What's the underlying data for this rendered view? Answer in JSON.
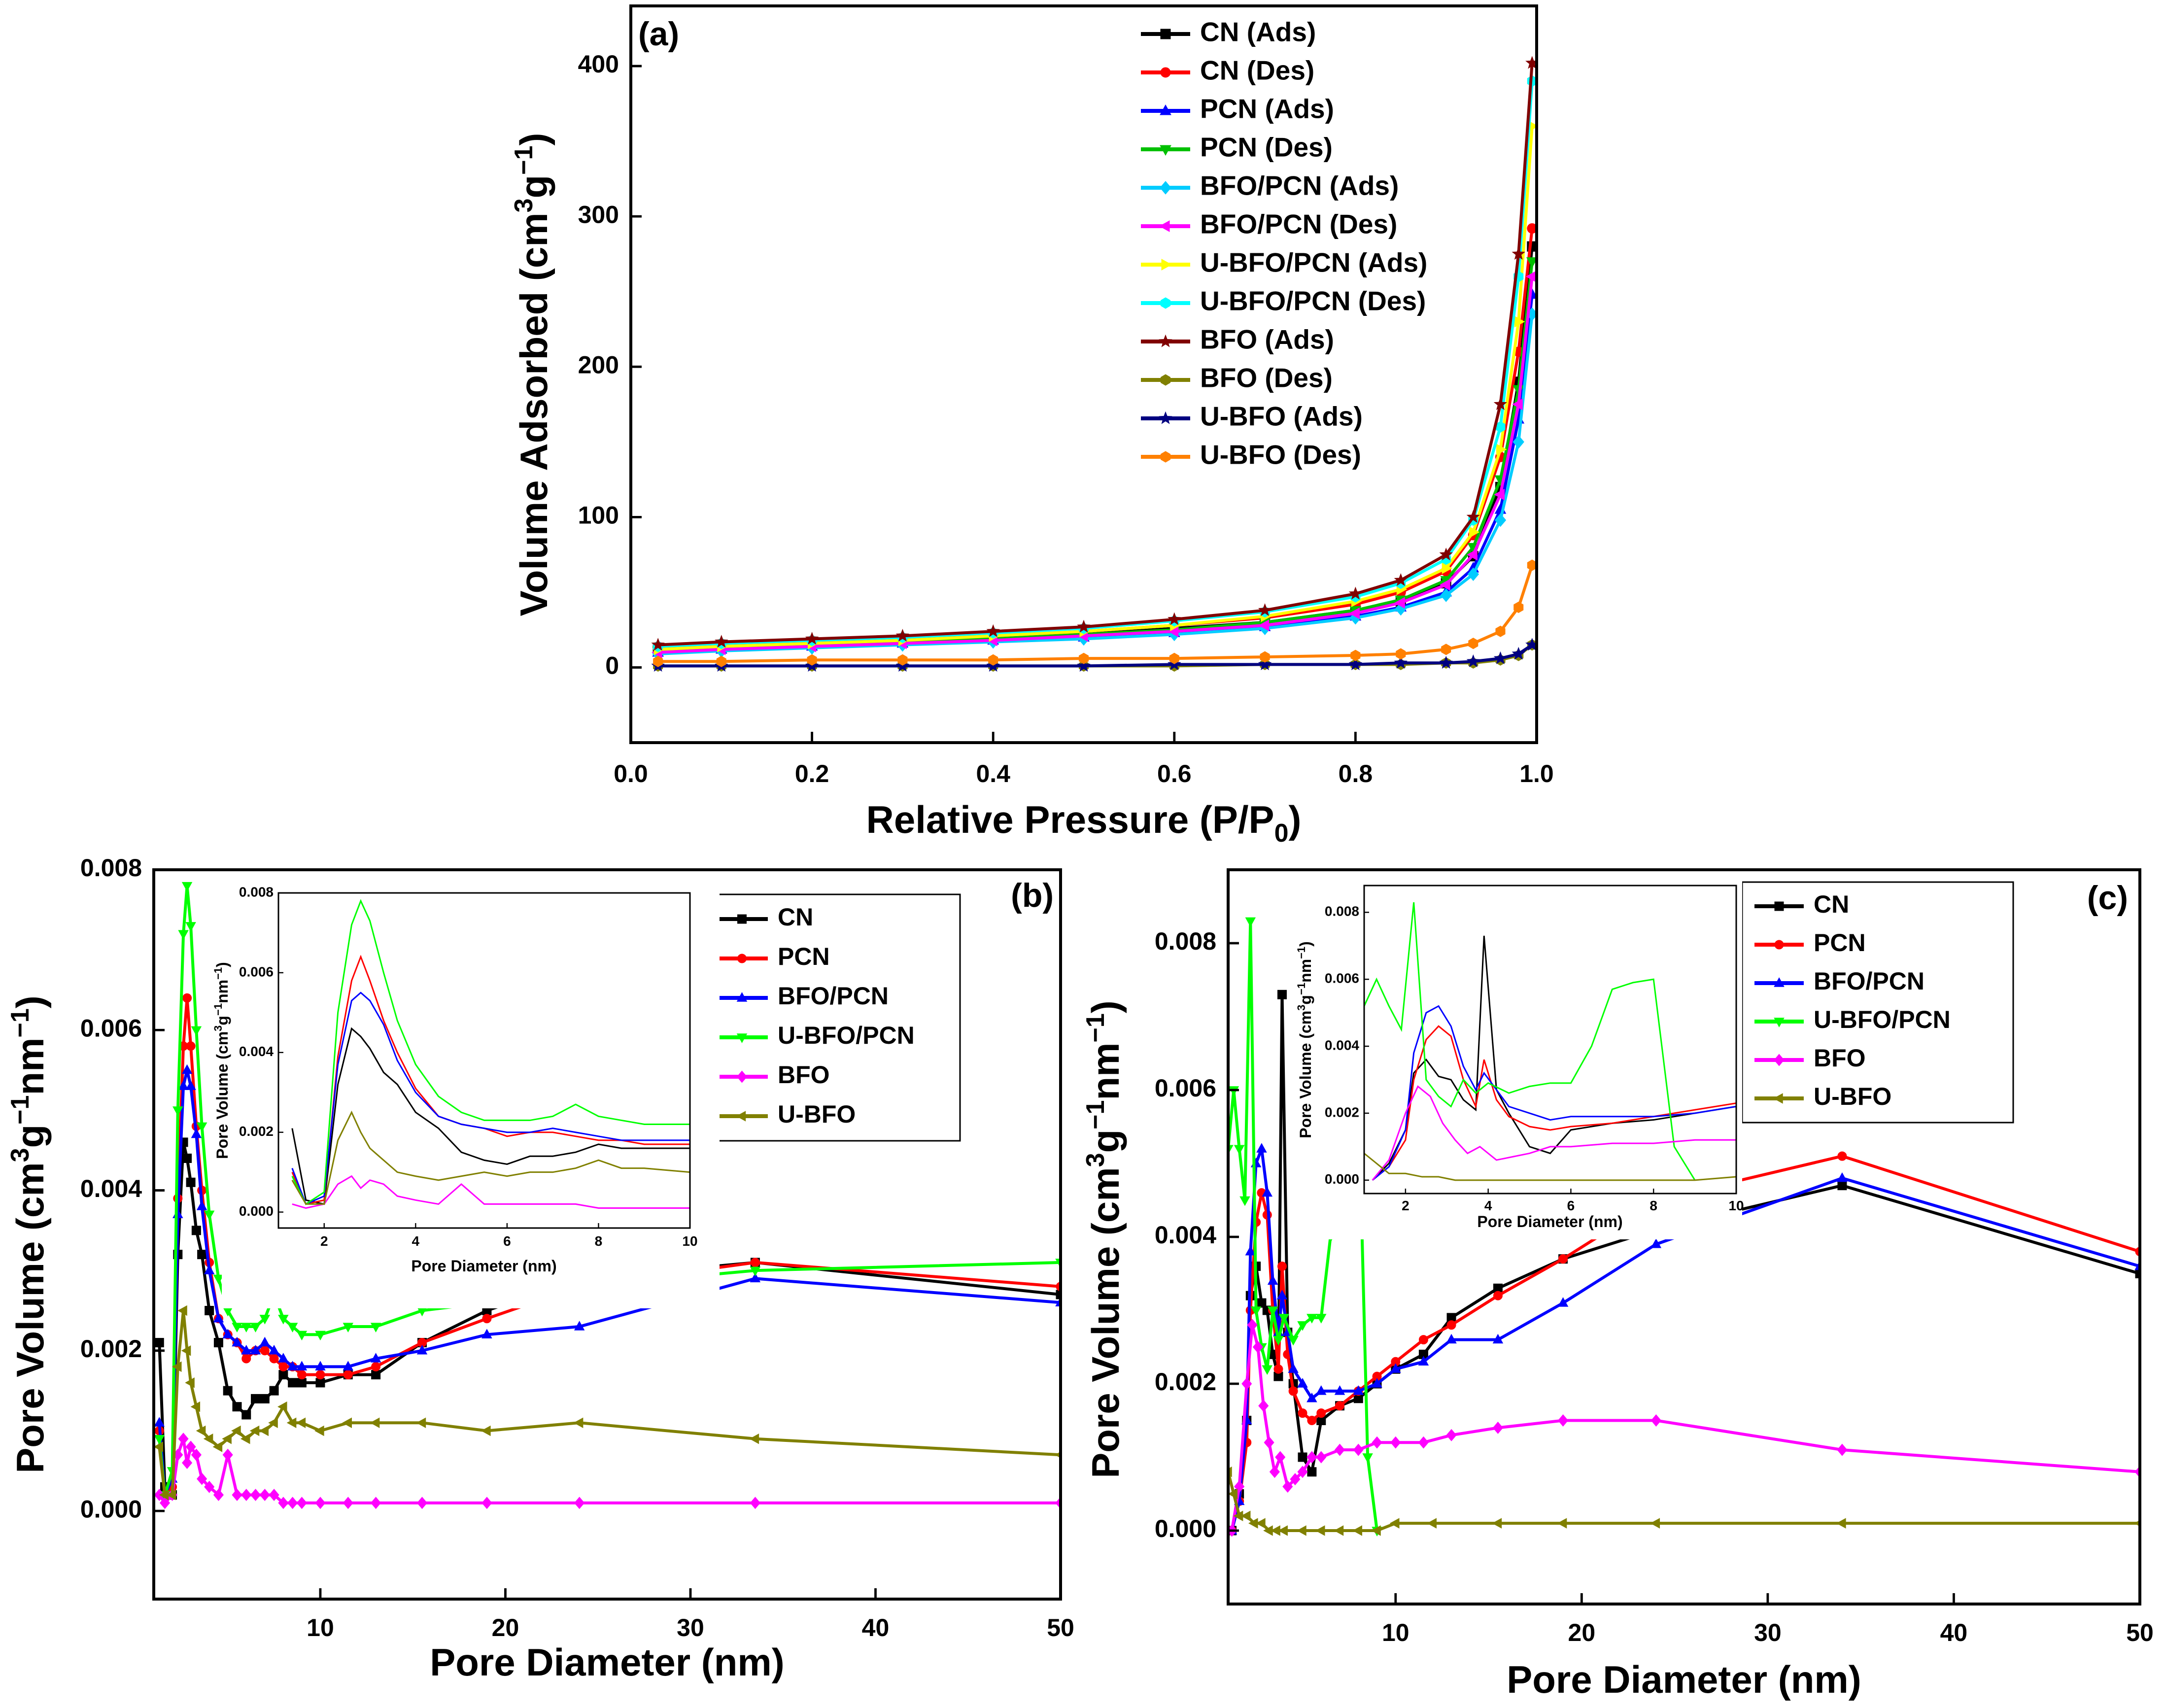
{
  "chart_data": [
    {
      "type": "line",
      "panel_label": "(a)",
      "xlabel": "Relative Pressure (P/P0)",
      "ylabel": "Volume Adsorbed (cm3g−1)",
      "xlim": [
        0,
        1.0
      ],
      "ylim": [
        -50,
        440
      ],
      "xticks": [
        "0.0",
        "0.2",
        "0.4",
        "0.6",
        "0.8",
        "1.0"
      ],
      "yticks": [
        "0",
        "100",
        "200",
        "300",
        "400"
      ],
      "legend_position": "top-right",
      "x": [
        0.03,
        0.1,
        0.2,
        0.3,
        0.4,
        0.5,
        0.6,
        0.7,
        0.8,
        0.85,
        0.9,
        0.93,
        0.96,
        0.98,
        0.995
      ],
      "series": [
        {
          "name": "CN (Ads)",
          "color": "#000000",
          "marker": "square",
          "values": [
            12,
            14,
            16,
            18,
            20,
            22,
            26,
            30,
            38,
            44,
            56,
            74,
            120,
            190,
            280
          ]
        },
        {
          "name": "CN (Des)",
          "color": "#ff0000",
          "marker": "circle",
          "values": [
            13,
            15,
            17,
            19,
            21,
            24,
            28,
            33,
            42,
            50,
            64,
            88,
            140,
            210,
            292
          ]
        },
        {
          "name": "PCN (Ads)",
          "color": "#0000ff",
          "marker": "triangle-up",
          "values": [
            10,
            12,
            14,
            16,
            18,
            20,
            23,
            27,
            34,
            40,
            50,
            66,
            105,
            165,
            248
          ]
        },
        {
          "name": "PCN (Des)",
          "color": "#00c000",
          "marker": "triangle-down",
          "values": [
            11,
            13,
            15,
            17,
            19,
            22,
            25,
            30,
            38,
            45,
            58,
            80,
            125,
            185,
            270
          ]
        },
        {
          "name": "BFO/PCN (Ads)",
          "color": "#00ccff",
          "marker": "diamond",
          "values": [
            9,
            11,
            13,
            15,
            17,
            19,
            22,
            26,
            33,
            39,
            48,
            62,
            98,
            150,
            235
          ]
        },
        {
          "name": "BFO/PCN (Des)",
          "color": "#ff00ff",
          "marker": "triangle-left",
          "values": [
            10,
            12,
            14,
            16,
            18,
            21,
            24,
            28,
            36,
            43,
            55,
            75,
            115,
            175,
            260
          ]
        },
        {
          "name": "U-BFO/PCN (Ads)",
          "color": "#ffff00",
          "marker": "triangle-right",
          "values": [
            12,
            14,
            16,
            18,
            21,
            24,
            28,
            34,
            44,
            52,
            66,
            90,
            145,
            230,
            360
          ]
        },
        {
          "name": "U-BFO/PCN (Des)",
          "color": "#00ffff",
          "marker": "hexagon",
          "values": [
            14,
            16,
            18,
            20,
            23,
            26,
            31,
            37,
            47,
            56,
            72,
            98,
            160,
            260,
            390
          ]
        },
        {
          "name": "BFO (Ads)",
          "color": "#800000",
          "marker": "star",
          "values": [
            15,
            17,
            19,
            21,
            24,
            27,
            32,
            38,
            49,
            58,
            75,
            100,
            175,
            275,
            402
          ]
        },
        {
          "name": "BFO (Des)",
          "color": "#808000",
          "marker": "hexagon",
          "values": [
            1,
            1,
            1,
            1,
            1,
            1,
            1,
            2,
            2,
            2,
            3,
            3,
            5,
            8,
            15
          ]
        },
        {
          "name": "U-BFO (Ads)",
          "color": "#000080",
          "marker": "star",
          "values": [
            1,
            1,
            1,
            1,
            1,
            1,
            2,
            2,
            2,
            3,
            3,
            4,
            6,
            9,
            15
          ]
        },
        {
          "name": "U-BFO (Des)",
          "color": "#ff8000",
          "marker": "hexagon",
          "values": [
            4,
            4,
            5,
            5,
            5,
            6,
            6,
            7,
            8,
            9,
            12,
            16,
            24,
            40,
            68
          ]
        }
      ]
    },
    {
      "type": "line",
      "panel_label": "(b)",
      "xlabel": "Pore Diameter (nm)",
      "ylabel": "Pore Volume (cm3g−1nm−1)",
      "xlim": [
        1,
        50
      ],
      "ylim": [
        -0.0011,
        0.008
      ],
      "xticks": [
        "10",
        "20",
        "30",
        "40",
        "50"
      ],
      "yticks": [
        "0.000",
        "0.002",
        "0.004",
        "0.006",
        "0.008"
      ],
      "legend_position": "top-right",
      "x": [
        1.3,
        1.6,
        2.0,
        2.3,
        2.6,
        2.8,
        3.0,
        3.3,
        3.6,
        4.0,
        4.5,
        5.0,
        5.5,
        6.0,
        6.5,
        7.0,
        7.5,
        8.0,
        8.5,
        9.0,
        10.0,
        11.5,
        13.0,
        15.5,
        19.0,
        24.0,
        33.5,
        50.0
      ],
      "series": [
        {
          "name": "CN",
          "color": "#000000",
          "marker": "square",
          "values": [
            0.0021,
            0.0003,
            0.0002,
            0.0032,
            0.0046,
            0.0044,
            0.0041,
            0.0035,
            0.0032,
            0.0025,
            0.0021,
            0.0015,
            0.0013,
            0.0012,
            0.0014,
            0.0014,
            0.0015,
            0.0017,
            0.0016,
            0.0016,
            0.0016,
            0.0017,
            0.0017,
            0.0021,
            0.0025,
            0.0029,
            0.0031,
            0.0027
          ]
        },
        {
          "name": "PCN",
          "color": "#ff0000",
          "marker": "circle",
          "values": [
            0.001,
            0.0002,
            0.0003,
            0.0039,
            0.0058,
            0.0064,
            0.0058,
            0.0048,
            0.004,
            0.0031,
            0.0024,
            0.0022,
            0.0021,
            0.0019,
            0.002,
            0.002,
            0.0019,
            0.0018,
            0.0018,
            0.0017,
            0.0017,
            0.0017,
            0.0018,
            0.0021,
            0.0024,
            0.0028,
            0.0031,
            0.0028
          ]
        },
        {
          "name": "BFO/PCN",
          "color": "#0000ff",
          "marker": "triangle-up",
          "values": [
            0.0011,
            0.0002,
            0.0004,
            0.0037,
            0.0053,
            0.0055,
            0.0053,
            0.0047,
            0.0038,
            0.003,
            0.0024,
            0.0022,
            0.0021,
            0.002,
            0.002,
            0.0021,
            0.002,
            0.0019,
            0.0018,
            0.0018,
            0.0018,
            0.0018,
            0.0019,
            0.002,
            0.0022,
            0.0023,
            0.0029,
            0.0026
          ]
        },
        {
          "name": "U-BFO/PCN",
          "color": "#00ff00",
          "marker": "triangle-down",
          "values": [
            0.0009,
            0.0002,
            0.0005,
            0.005,
            0.0072,
            0.0078,
            0.0073,
            0.006,
            0.0048,
            0.0037,
            0.0029,
            0.0025,
            0.0023,
            0.0023,
            0.0023,
            0.0024,
            0.0027,
            0.0024,
            0.0023,
            0.0022,
            0.0022,
            0.0023,
            0.0023,
            0.0025,
            0.0026,
            0.0028,
            0.003,
            0.0031
          ]
        },
        {
          "name": "BFO",
          "color": "#ff00ff",
          "marker": "diamond",
          "values": [
            0.0002,
            0.0001,
            0.0002,
            0.0007,
            0.0009,
            0.0006,
            0.0008,
            0.0007,
            0.0004,
            0.0003,
            0.0002,
            0.0007,
            0.0002,
            0.0002,
            0.0002,
            0.0002,
            0.0002,
            0.0001,
            0.0001,
            0.0001,
            0.0001,
            0.0001,
            0.0001,
            0.0001,
            0.0001,
            0.0001,
            0.0001,
            0.0001
          ]
        },
        {
          "name": "U-BFO",
          "color": "#808000",
          "marker": "triangle-left",
          "values": [
            0.0008,
            0.0002,
            0.0002,
            0.0018,
            0.0025,
            0.002,
            0.0016,
            0.0013,
            0.001,
            0.0009,
            0.0008,
            0.0009,
            0.001,
            0.0009,
            0.001,
            0.001,
            0.0011,
            0.0013,
            0.0011,
            0.0011,
            0.001,
            0.0011,
            0.0011,
            0.0011,
            0.001,
            0.0011,
            0.0009,
            0.0007
          ]
        }
      ],
      "inset": {
        "xlabel": "Pore Diameter (nm)",
        "ylabel": "Pore Volume (cm3g−1nm−1)",
        "xlim": [
          1,
          10
        ],
        "ylim": [
          -0.0004,
          0.008
        ],
        "xticks": [
          "2",
          "4",
          "6",
          "8",
          "10"
        ],
        "yticks": [
          "0.000",
          "0.002",
          "0.004",
          "0.006",
          "0.008"
        ]
      }
    },
    {
      "type": "line",
      "panel_label": "(c)",
      "xlabel": "Pore Diameter (nm)",
      "ylabel": "Pore Volume (cm3g−1nm−1)",
      "xlim": [
        1,
        50
      ],
      "ylim": [
        -0.001,
        0.009
      ],
      "xticks": [
        "10",
        "20",
        "30",
        "40",
        "50"
      ],
      "yticks": [
        "0.000",
        "0.002",
        "0.004",
        "0.006",
        "0.008"
      ],
      "legend_position": "top-right",
      "series": [
        {
          "name": "CN",
          "color": "#000000",
          "marker": "square",
          "x": [
            1.2,
            1.6,
            2.0,
            2.2,
            2.5,
            2.8,
            3.1,
            3.4,
            3.7,
            3.9,
            4.2,
            4.5,
            5.0,
            5.5,
            6.0,
            7.0,
            8.0,
            9.0,
            10.0,
            11.5,
            13.0,
            15.5,
            19.0,
            24.0,
            34.0,
            50.0
          ],
          "values": [
            0.0,
            0.0005,
            0.0015,
            0.0032,
            0.0036,
            0.0031,
            0.003,
            0.0024,
            0.0021,
            0.0073,
            0.0027,
            0.002,
            0.001,
            0.0008,
            0.0015,
            0.0017,
            0.0018,
            0.002,
            0.0022,
            0.0024,
            0.0029,
            0.0033,
            0.0037,
            0.0041,
            0.0047,
            0.0035
          ]
        },
        {
          "name": "PCN",
          "color": "#ff0000",
          "marker": "circle",
          "x": [
            1.2,
            1.6,
            2.0,
            2.2,
            2.5,
            2.8,
            3.1,
            3.4,
            3.7,
            3.9,
            4.2,
            4.5,
            5.0,
            5.5,
            6.0,
            7.0,
            8.0,
            9.0,
            10.0,
            11.5,
            13.0,
            15.5,
            19.0,
            24.0,
            34.0,
            50.0
          ],
          "values": [
            0.0,
            0.0004,
            0.0012,
            0.003,
            0.0042,
            0.0046,
            0.0043,
            0.003,
            0.0022,
            0.0036,
            0.0024,
            0.0019,
            0.0016,
            0.0015,
            0.0016,
            0.0017,
            0.0019,
            0.0021,
            0.0023,
            0.0026,
            0.0028,
            0.0032,
            0.0037,
            0.0045,
            0.0051,
            0.0038
          ]
        },
        {
          "name": "BFO/PCN",
          "color": "#0000ff",
          "marker": "triangle-up",
          "x": [
            1.2,
            1.6,
            2.0,
            2.2,
            2.5,
            2.8,
            3.1,
            3.4,
            3.7,
            3.9,
            4.2,
            4.5,
            5.0,
            5.5,
            6.0,
            7.0,
            8.0,
            9.0,
            10.0,
            11.5,
            13.0,
            15.5,
            19.0,
            24.0,
            34.0,
            50.0
          ],
          "values": [
            0.0,
            0.0004,
            0.0015,
            0.0038,
            0.005,
            0.0052,
            0.0046,
            0.0034,
            0.0027,
            0.0032,
            0.0027,
            0.0022,
            0.002,
            0.0018,
            0.0019,
            0.0019,
            0.0019,
            0.002,
            0.0022,
            0.0023,
            0.0026,
            0.0026,
            0.0031,
            0.0039,
            0.0048,
            0.0036
          ]
        },
        {
          "name": "U-BFO/PCN",
          "color": "#00ff00",
          "marker": "triangle-down",
          "x": [
            1.0,
            1.3,
            1.6,
            1.9,
            2.2,
            2.5,
            2.8,
            3.1,
            3.4,
            3.7,
            4.0,
            4.5,
            5.0,
            5.5,
            6.0,
            6.5,
            7.0,
            7.5,
            8.0,
            8.5,
            9.0
          ],
          "values": [
            0.0052,
            0.006,
            0.0052,
            0.0045,
            0.0083,
            0.003,
            0.0025,
            0.0022,
            0.003,
            0.0026,
            0.0029,
            0.0026,
            0.0028,
            0.0029,
            0.0029,
            0.004,
            0.0057,
            0.0059,
            0.006,
            0.001,
            0.0
          ]
        },
        {
          "name": "BFO",
          "color": "#ff00ff",
          "marker": "diamond",
          "x": [
            1.2,
            1.6,
            2.0,
            2.3,
            2.6,
            2.9,
            3.2,
            3.5,
            3.8,
            4.2,
            4.6,
            5.0,
            5.5,
            6.0,
            7.0,
            8.0,
            9.0,
            10.0,
            11.5,
            13.0,
            15.5,
            19.0,
            24.0,
            34.0,
            50.0
          ],
          "values": [
            0.0,
            0.0006,
            0.002,
            0.0028,
            0.0025,
            0.0017,
            0.0012,
            0.0008,
            0.001,
            0.0006,
            0.0007,
            0.0008,
            0.001,
            0.001,
            0.0011,
            0.0011,
            0.0012,
            0.0012,
            0.0012,
            0.0013,
            0.0014,
            0.0015,
            0.0015,
            0.0011,
            0.0008
          ]
        },
        {
          "name": "U-BFO",
          "color": "#808000",
          "marker": "triangle-left",
          "x": [
            1.0,
            1.3,
            1.6,
            2.0,
            2.4,
            2.8,
            3.2,
            3.6,
            4.0,
            5.0,
            6.0,
            7.0,
            8.0,
            9.0,
            10.0,
            12.0,
            15.5,
            19.0,
            24.0,
            34.0,
            50.0
          ],
          "values": [
            0.0008,
            0.0005,
            0.0002,
            0.0002,
            0.0001,
            0.0001,
            0.0,
            0.0,
            0.0,
            0.0,
            0.0,
            0.0,
            0.0,
            0.0,
            0.0001,
            0.0001,
            0.0001,
            0.0001,
            0.0001,
            0.0001,
            0.0001
          ]
        }
      ],
      "inset": {
        "xlabel": "Pore Diameter (nm)",
        "ylabel": "Pore Volume (cm3g−1nm−1)",
        "xlim": [
          1,
          10
        ],
        "ylim": [
          -0.0004,
          0.0088
        ],
        "xticks": [
          "2",
          "4",
          "6",
          "8",
          "10"
        ],
        "yticks": [
          "0.000",
          "0.002",
          "0.004",
          "0.006",
          "0.008"
        ]
      }
    }
  ]
}
